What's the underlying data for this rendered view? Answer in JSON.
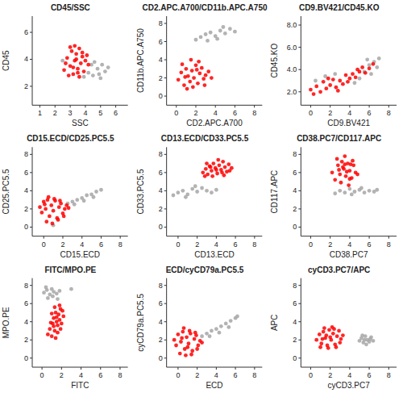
{
  "chart_data": [
    {
      "type": "scatter",
      "title": "CD45/SSC",
      "x_label": "SSC",
      "y_label": "CD45",
      "xlim": [
        0.5,
        6.8
      ],
      "ylim": [
        0.6,
        7.2
      ],
      "xticks": [
        1,
        2,
        3,
        4,
        5,
        6
      ],
      "yticks": [
        2,
        4,
        6
      ],
      "series": [
        {
          "color": "#a6a6a6",
          "x": [
            4.2,
            4.5,
            4.8,
            5.0,
            5.3,
            4.4,
            4.9,
            5.5,
            3.9,
            4.6,
            5.1,
            2.5
          ],
          "values": [
            3.0,
            2.8,
            3.3,
            2.6,
            3.1,
            3.6,
            2.9,
            3.4,
            2.7,
            3.8,
            3.6,
            3.9
          ]
        },
        {
          "color": "#ff0000",
          "x": [
            2.6,
            2.8,
            3.0,
            3.1,
            3.2,
            3.3,
            3.4,
            3.5,
            3.6,
            3.7,
            3.8,
            4.0,
            2.9,
            3.2,
            3.5,
            3.8,
            4.1,
            3.0,
            3.3,
            3.6,
            3.9,
            2.7,
            3.4,
            4.2
          ],
          "values": [
            3.2,
            4.1,
            3.5,
            4.6,
            2.9,
            3.9,
            4.4,
            3.3,
            4.8,
            3.7,
            4.2,
            3.9,
            2.8,
            3.4,
            3.0,
            4.5,
            4.3,
            4.9,
            5.0,
            2.7,
            3.1,
            3.7,
            4.0,
            3.6
          ]
        }
      ]
    },
    {
      "type": "scatter",
      "title": "CD2.APC.A700/CD11b.APC.A750",
      "x_label": "CD2.APC.A700",
      "y_label": "CD11b.APC.A750",
      "xlim": [
        -1,
        8.8
      ],
      "ylim": [
        -1,
        8.8
      ],
      "xticks": [
        0,
        2,
        4,
        6,
        8
      ],
      "yticks": [
        0,
        2,
        4,
        6,
        8
      ],
      "series": [
        {
          "color": "#a6a6a6",
          "x": [
            2.0,
            2.5,
            3.0,
            3.5,
            4.0,
            4.5,
            5.0,
            5.5,
            3.2,
            4.2,
            4.8,
            6.0
          ],
          "values": [
            6.2,
            6.5,
            6.8,
            7.0,
            6.6,
            7.2,
            6.9,
            7.4,
            6.1,
            6.3,
            7.6,
            7.1
          ]
        },
        {
          "color": "#ff0000",
          "x": [
            0.2,
            0.5,
            0.8,
            1.0,
            1.2,
            1.4,
            1.6,
            1.8,
            2.0,
            2.2,
            2.4,
            2.6,
            2.8,
            3.0,
            3.3,
            3.6,
            0.6,
            1.1,
            1.7,
            2.3,
            2.9,
            1.5,
            2.1,
            0.9
          ],
          "values": [
            1.8,
            2.6,
            1.2,
            3.0,
            2.2,
            1.6,
            2.8,
            2.0,
            3.4,
            1.4,
            2.5,
            3.1,
            1.9,
            2.3,
            2.7,
            2.0,
            3.5,
            0.8,
            1.0,
            3.8,
            1.2,
            4.0,
            2.9,
            2.1
          ]
        }
      ]
    },
    {
      "type": "scatter",
      "title": "CD9.BV421/CD45.KO",
      "x_label": "CD9.BV421",
      "y_label": "CD45.KO",
      "xlim": [
        -1,
        8.8
      ],
      "ylim": [
        0.8,
        8.8
      ],
      "xticks": [
        0,
        2,
        4,
        6,
        8
      ],
      "yticks": [
        {
          "value": 2,
          "label": "2.0"
        },
        {
          "value": 4,
          "label": "4.0"
        },
        {
          "value": 6,
          "label": "6.0"
        },
        {
          "value": 8,
          "label": "8.0"
        }
      ],
      "series": [
        {
          "color": "#a6a6a6",
          "x": [
            5.0,
            5.5,
            6.0,
            6.5,
            7.0,
            6.2,
            0.5,
            1.5,
            4.5,
            5.8,
            6.8,
            2.5
          ],
          "values": [
            3.2,
            3.8,
            4.4,
            4.7,
            5.0,
            3.6,
            3.0,
            3.4,
            2.8,
            4.9,
            4.2,
            3.6
          ]
        },
        {
          "color": "#ff0000",
          "x": [
            0.0,
            0.3,
            0.6,
            1.0,
            1.3,
            1.6,
            2.0,
            2.3,
            2.6,
            3.0,
            3.3,
            3.6,
            4.0,
            4.3,
            4.6,
            5.0,
            5.3,
            5.6,
            6.0,
            6.4,
            1.8,
            2.8,
            3.8,
            4.8
          ],
          "values": [
            2.2,
            1.8,
            2.5,
            2.0,
            2.9,
            2.3,
            2.6,
            3.1,
            2.4,
            3.0,
            2.7,
            3.5,
            3.2,
            3.6,
            3.3,
            3.8,
            4.2,
            3.7,
            4.1,
            4.5,
            3.2,
            2.1,
            2.9,
            4.0
          ]
        }
      ]
    },
    {
      "type": "scatter",
      "title": "CD15.ECD/CD25.PC5.5",
      "x_label": "CD15.ECD",
      "y_label": "CD25.PC5.5",
      "xlim": [
        -1.2,
        8.8
      ],
      "ylim": [
        -1,
        8.8
      ],
      "xticks": [
        0,
        2,
        4,
        6,
        8
      ],
      "yticks": [
        0,
        2,
        4,
        6,
        8
      ],
      "series": [
        {
          "color": "#a6a6a6",
          "x": [
            2.5,
            3.0,
            3.5,
            4.0,
            4.5,
            5.0,
            5.5,
            6.0,
            3.2,
            4.2,
            5.2,
            1.0
          ],
          "values": [
            2.6,
            2.8,
            3.0,
            3.2,
            3.5,
            3.6,
            3.9,
            4.1,
            2.5,
            2.9,
            3.3,
            0.2
          ]
        },
        {
          "color": "#ff0000",
          "x": [
            -0.4,
            -0.2,
            0.0,
            0.2,
            0.4,
            0.6,
            0.8,
            1.0,
            1.2,
            1.4,
            1.6,
            1.8,
            2.0,
            2.2,
            2.4,
            2.6,
            0.3,
            0.9,
            1.5,
            2.1,
            0.5,
            1.1,
            1.7,
            0.1
          ],
          "values": [
            2.2,
            1.6,
            2.8,
            2.0,
            3.0,
            1.2,
            2.4,
            1.8,
            2.9,
            1.0,
            2.2,
            2.6,
            1.5,
            2.0,
            2.4,
            2.1,
            0.6,
            0.4,
            0.8,
            1.2,
            3.3,
            3.1,
            2.9,
            2.5
          ]
        }
      ]
    },
    {
      "type": "scatter",
      "title": "CD13.ECD/CD33.PC5.5",
      "x_label": "CD13.ECD",
      "y_label": "CD33.PC5.5",
      "xlim": [
        -1.2,
        8.8
      ],
      "ylim": [
        -1,
        8.8
      ],
      "xticks": [
        0,
        2,
        4,
        6,
        8
      ],
      "yticks": [
        0,
        2,
        4,
        6,
        8
      ],
      "series": [
        {
          "color": "#a6a6a6",
          "x": [
            -0.5,
            0.0,
            0.5,
            1.0,
            1.5,
            2.0,
            2.5,
            3.0,
            0.8,
            1.8,
            3.5,
            4.0
          ],
          "values": [
            3.5,
            3.8,
            4.0,
            3.6,
            4.2,
            3.9,
            4.3,
            4.0,
            3.3,
            4.5,
            3.8,
            4.1
          ]
        },
        {
          "color": "#ff0000",
          "x": [
            2.6,
            2.9,
            3.1,
            3.3,
            3.5,
            3.7,
            3.9,
            4.1,
            4.3,
            4.5,
            4.7,
            4.9,
            5.1,
            5.3,
            5.6,
            3.0,
            3.6,
            4.2,
            4.8,
            5.4,
            3.4,
            4.0,
            4.6,
            2.8
          ],
          "values": [
            6.0,
            6.4,
            5.8,
            6.7,
            6.2,
            7.0,
            6.5,
            5.9,
            6.8,
            6.3,
            7.2,
            6.6,
            6.1,
            6.9,
            6.5,
            7.0,
            5.6,
            7.4,
            5.7,
            6.2,
            6.6,
            6.3,
            6.0,
            5.6
          ]
        }
      ]
    },
    {
      "type": "scatter",
      "title": "CD38.PC7/CD117.APC",
      "x_label": "CD38.PC7",
      "y_label": "CD117.APC",
      "xlim": [
        -1,
        8.8
      ],
      "ylim": [
        -1,
        8.8
      ],
      "xticks": [
        0,
        2,
        4,
        6,
        8
      ],
      "yticks": [
        0,
        2,
        4,
        6,
        8
      ],
      "series": [
        {
          "color": "#a6a6a6",
          "x": [
            3.0,
            3.5,
            4.0,
            4.5,
            5.0,
            5.5,
            6.0,
            6.5,
            4.2,
            5.2,
            6.8,
            2.5
          ],
          "values": [
            4.0,
            3.8,
            4.2,
            3.9,
            4.1,
            3.8,
            4.0,
            3.9,
            3.6,
            4.3,
            4.1,
            3.7
          ]
        },
        {
          "color": "#ff0000",
          "x": [
            2.2,
            2.5,
            2.8,
            3.0,
            3.2,
            3.4,
            3.6,
            3.8,
            4.0,
            4.2,
            4.4,
            4.6,
            4.8,
            2.7,
            3.1,
            3.5,
            3.9,
            4.3,
            3.3,
            3.7,
            4.1,
            2.9,
            3.5,
            4.0
          ],
          "values": [
            6.0,
            5.2,
            6.8,
            5.8,
            7.2,
            6.4,
            5.6,
            7.0,
            6.2,
            5.4,
            6.8,
            6.0,
            5.8,
            7.5,
            4.9,
            7.8,
            4.6,
            7.3,
            6.6,
            6.1,
            6.9,
            6.3,
            6.9,
            5.3
          ]
        }
      ]
    },
    {
      "type": "scatter",
      "title": "FITC/MPO.PE",
      "x_label": "FITC",
      "y_label": "MPO.PE",
      "xlim": [
        -1,
        8.8
      ],
      "ylim": [
        -1,
        8.8
      ],
      "xticks": [
        0,
        2,
        4,
        6,
        8
      ],
      "yticks": [
        0,
        2,
        4,
        6,
        8
      ],
      "series": [
        {
          "color": "#a6a6a6",
          "x": [
            0.2,
            0.5,
            0.8,
            1.0,
            1.2,
            1.5,
            1.8,
            0.6,
            1.1,
            1.6,
            3.0,
            0.4
          ],
          "values": [
            7.2,
            7.5,
            7.0,
            7.6,
            7.3,
            7.1,
            7.4,
            6.6,
            6.8,
            6.5,
            7.6,
            7.8
          ]
        },
        {
          "color": "#ff0000",
          "x": [
            0.6,
            0.8,
            1.0,
            1.1,
            1.2,
            1.3,
            1.4,
            1.5,
            1.6,
            1.7,
            1.8,
            1.9,
            2.0,
            2.2,
            1.0,
            1.3,
            1.6,
            1.9,
            0.9,
            1.5,
            1.2,
            1.8,
            1.4,
            2.1
          ],
          "values": [
            2.6,
            3.2,
            2.4,
            3.8,
            4.4,
            3.0,
            5.0,
            4.0,
            3.6,
            4.8,
            4.2,
            5.4,
            3.8,
            4.6,
            4.9,
            5.6,
            2.8,
            3.2,
            3.9,
            4.5,
            3.5,
            5.8,
            2.2,
            5.2
          ]
        }
      ]
    },
    {
      "type": "scatter",
      "title": "ECD/cyCD79a.PC5.5",
      "x_label": "ECD",
      "y_label": "cyCD79a.PC5.5",
      "xlim": [
        -1.2,
        8.8
      ],
      "ylim": [
        -1,
        8.8
      ],
      "xticks": [
        0,
        2,
        4,
        6,
        8
      ],
      "yticks": [
        0,
        2,
        4,
        6,
        8
      ],
      "series": [
        {
          "color": "#a6a6a6",
          "x": [
            2.5,
            3.0,
            3.5,
            4.0,
            4.5,
            5.0,
            5.5,
            6.0,
            3.3,
            4.3,
            5.3,
            6.2
          ],
          "values": [
            2.4,
            2.7,
            3.0,
            3.2,
            3.5,
            3.8,
            4.1,
            4.4,
            2.4,
            2.8,
            3.4,
            4.6
          ]
        },
        {
          "color": "#ff0000",
          "x": [
            -0.4,
            -0.2,
            0.0,
            0.3,
            0.5,
            0.7,
            0.9,
            1.1,
            1.3,
            1.5,
            1.7,
            1.9,
            2.1,
            2.3,
            2.5,
            0.2,
            0.8,
            1.4,
            2.0,
            0.6,
            1.2,
            1.8,
            0.4,
            1.0
          ],
          "values": [
            2.0,
            1.4,
            2.6,
            1.8,
            2.9,
            1.0,
            2.3,
            1.6,
            2.7,
            0.8,
            2.1,
            2.5,
            1.4,
            1.9,
            1.7,
            0.5,
            0.3,
            0.4,
            1.0,
            3.3,
            3.0,
            2.8,
            2.2,
            1.2
          ]
        }
      ]
    },
    {
      "type": "scatter",
      "title": "cyCD3.PC7/APC",
      "x_label": "cyCD3.PC7",
      "y_label": "APC",
      "xlim": [
        -1,
        8.8
      ],
      "ylim": [
        -1,
        8.8
      ],
      "xticks": [
        0,
        2,
        4,
        6,
        8
      ],
      "yticks": [
        0,
        2,
        4,
        6,
        8
      ],
      "series": [
        {
          "color": "#a6a6a6",
          "x": [
            5.0,
            5.2,
            5.4,
            5.6,
            5.8,
            6.0,
            6.2,
            5.3,
            5.7,
            6.1,
            6.4,
            5.5
          ],
          "values": [
            1.9,
            2.2,
            1.7,
            2.4,
            2.0,
            1.8,
            2.3,
            2.5,
            1.5,
            2.1,
            1.9,
            2.0
          ]
        },
        {
          "color": "#ff0000",
          "x": [
            0.6,
            0.9,
            1.1,
            1.3,
            1.5,
            1.7,
            1.9,
            2.1,
            2.3,
            2.5,
            2.7,
            2.9,
            3.1,
            3.3,
            1.0,
            1.4,
            1.8,
            2.2,
            2.6,
            3.0,
            1.6,
            2.0,
            2.4,
            1.2
          ],
          "values": [
            2.0,
            2.6,
            1.6,
            2.9,
            2.2,
            1.4,
            3.1,
            2.0,
            2.7,
            1.5,
            2.4,
            3.0,
            2.1,
            2.5,
            1.2,
            3.3,
            1.1,
            3.4,
            1.2,
            1.7,
            2.5,
            2.3,
            3.2,
            2.1
          ]
        }
      ]
    }
  ]
}
